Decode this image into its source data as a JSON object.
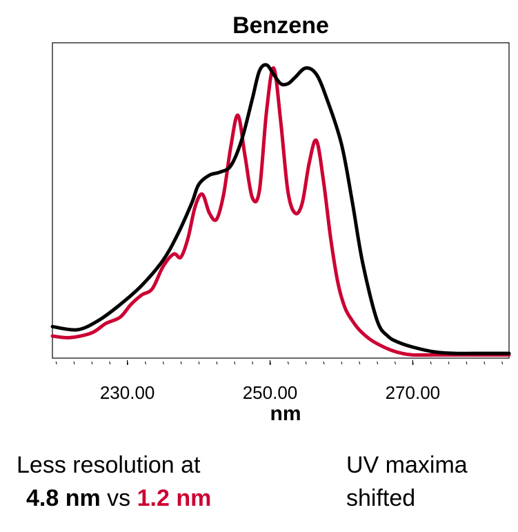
{
  "chart_data": {
    "type": "line",
    "title": "Benzene",
    "xlabel": "nm",
    "ylabel": "",
    "xlim": [
      219.5,
      283.5
    ],
    "ylim": [
      0,
      1.0
    ],
    "grid": false,
    "x_ticks": [
      {
        "value": 230,
        "label": "230.00"
      },
      {
        "value": 250,
        "label": "250.00"
      },
      {
        "value": 270,
        "label": "270.00"
      }
    ],
    "minor_tick_step": 2.5,
    "series": [
      {
        "color": "#000000",
        "x": [
          219.5,
          223,
          226,
          229,
          232,
          235,
          237,
          239,
          240,
          241.5,
          243,
          244.5,
          246,
          247.5,
          248.5,
          249.5,
          250.5,
          251.5,
          252.5,
          253.5,
          255,
          256.5,
          258,
          260,
          261.5,
          263,
          265,
          266.5,
          268,
          270,
          273,
          276,
          280,
          283.5
        ],
        "y": [
          0.1,
          0.09,
          0.12,
          0.17,
          0.23,
          0.31,
          0.39,
          0.49,
          0.55,
          0.58,
          0.59,
          0.61,
          0.69,
          0.82,
          0.91,
          0.93,
          0.9,
          0.87,
          0.87,
          0.89,
          0.92,
          0.9,
          0.82,
          0.68,
          0.5,
          0.3,
          0.12,
          0.07,
          0.05,
          0.035,
          0.02,
          0.015,
          0.015,
          0.015
        ]
      },
      {
        "color": "#cc0033",
        "x": [
          219.5,
          222,
          225,
          227,
          229,
          230.5,
          232,
          233.5,
          235,
          236.5,
          237.5,
          238.5,
          239.5,
          240.5,
          241.5,
          242.5,
          243.5,
          244.5,
          245.5,
          246.5,
          247.5,
          248.5,
          249.5,
          250.5,
          251.5,
          252.5,
          253.5,
          254.5,
          255.5,
          256.5,
          257.5,
          258.5,
          259.5,
          260.5,
          261.5,
          262.5,
          264,
          265.5,
          267,
          268.5,
          270,
          273,
          276,
          280,
          283.5
        ],
        "y": [
          0.07,
          0.065,
          0.08,
          0.11,
          0.13,
          0.17,
          0.2,
          0.22,
          0.29,
          0.33,
          0.32,
          0.38,
          0.48,
          0.52,
          0.46,
          0.44,
          0.52,
          0.67,
          0.77,
          0.64,
          0.51,
          0.53,
          0.78,
          0.92,
          0.75,
          0.53,
          0.46,
          0.49,
          0.62,
          0.69,
          0.56,
          0.38,
          0.24,
          0.16,
          0.12,
          0.09,
          0.06,
          0.04,
          0.025,
          0.015,
          0.01,
          0.01,
          0.01,
          0.01,
          0.01
        ]
      }
    ]
  },
  "captions": {
    "left_line1": "Less resolution at",
    "left_bold1": "4.8 nm",
    "left_mid": " vs ",
    "left_bold2": "1.2 nm",
    "right_line1": "UV maxima",
    "right_line2": "shifted"
  }
}
